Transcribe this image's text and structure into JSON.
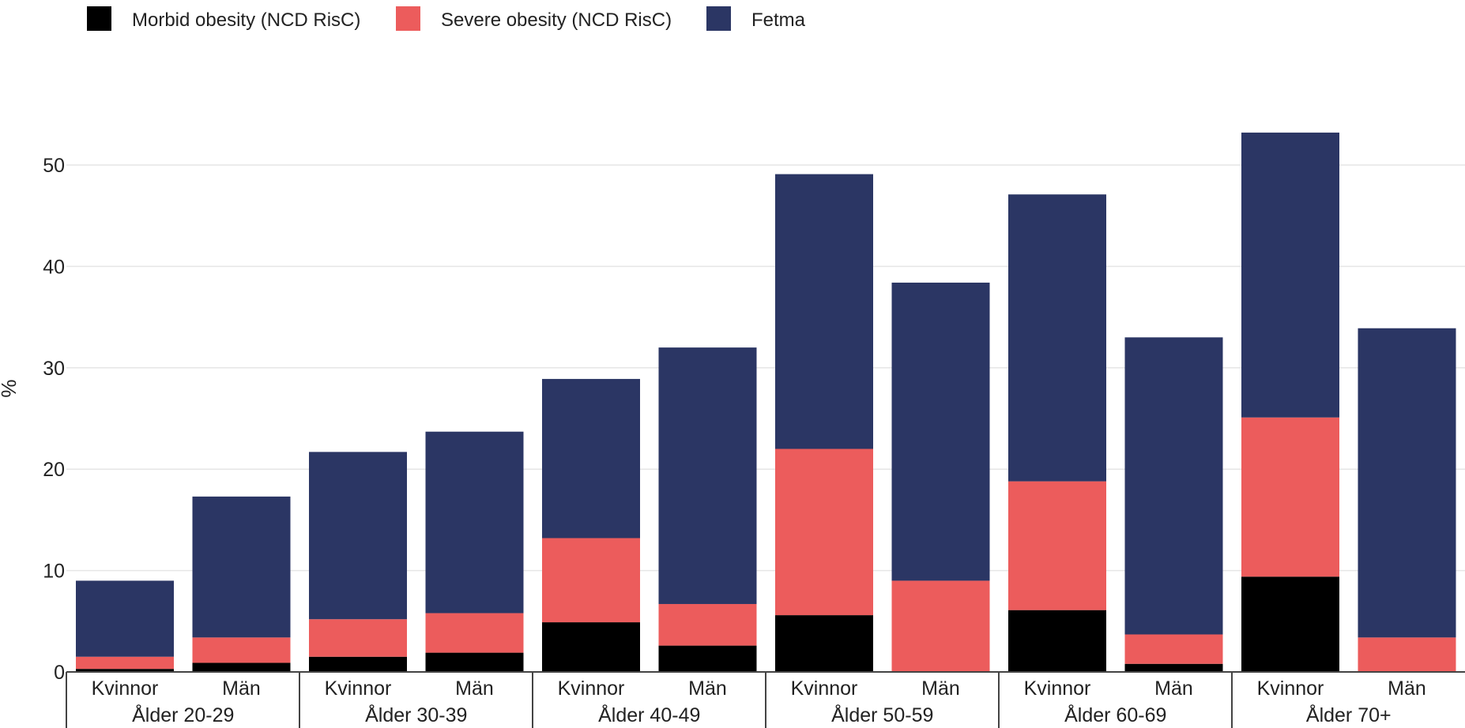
{
  "chart_data": {
    "type": "bar",
    "stacked": true,
    "ylabel": "%",
    "ylim": [
      0,
      60
    ],
    "yticks": [
      0,
      10,
      20,
      30,
      40,
      50
    ],
    "grid": true,
    "legend_position": "top-left",
    "groups": [
      {
        "label": "Ålder 20-29",
        "categories": [
          "Kvinnor",
          "Män"
        ]
      },
      {
        "label": "Ålder 30-39",
        "categories": [
          "Kvinnor",
          "Män"
        ]
      },
      {
        "label": "Ålder 40-49",
        "categories": [
          "Kvinnor",
          "Män"
        ]
      },
      {
        "label": "Ålder 50-59",
        "categories": [
          "Kvinnor",
          "Män"
        ]
      },
      {
        "label": "Ålder 60-69",
        "categories": [
          "Kvinnor",
          "Män"
        ]
      },
      {
        "label": "Ålder 70+",
        "categories": [
          "Kvinnor",
          "Män"
        ]
      }
    ],
    "series": [
      {
        "name": "Morbid obesity (NCD RisC)",
        "color": "#000000",
        "values": [
          0.3,
          0.9,
          1.5,
          1.9,
          4.9,
          2.6,
          5.6,
          0,
          6.1,
          0.8,
          9.4,
          0
        ]
      },
      {
        "name": "Severe obesity (NCD RisC)",
        "color": "#ec5c5c",
        "values": [
          1.2,
          2.5,
          3.7,
          3.9,
          8.3,
          4.1,
          16.4,
          9.0,
          12.7,
          2.9,
          15.7,
          3.4
        ]
      },
      {
        "name": "Fetma",
        "color": "#2b3664",
        "values": [
          7.5,
          13.9,
          16.5,
          17.9,
          15.7,
          25.3,
          27.1,
          29.4,
          28.3,
          29.3,
          28.1,
          30.5
        ]
      }
    ]
  }
}
